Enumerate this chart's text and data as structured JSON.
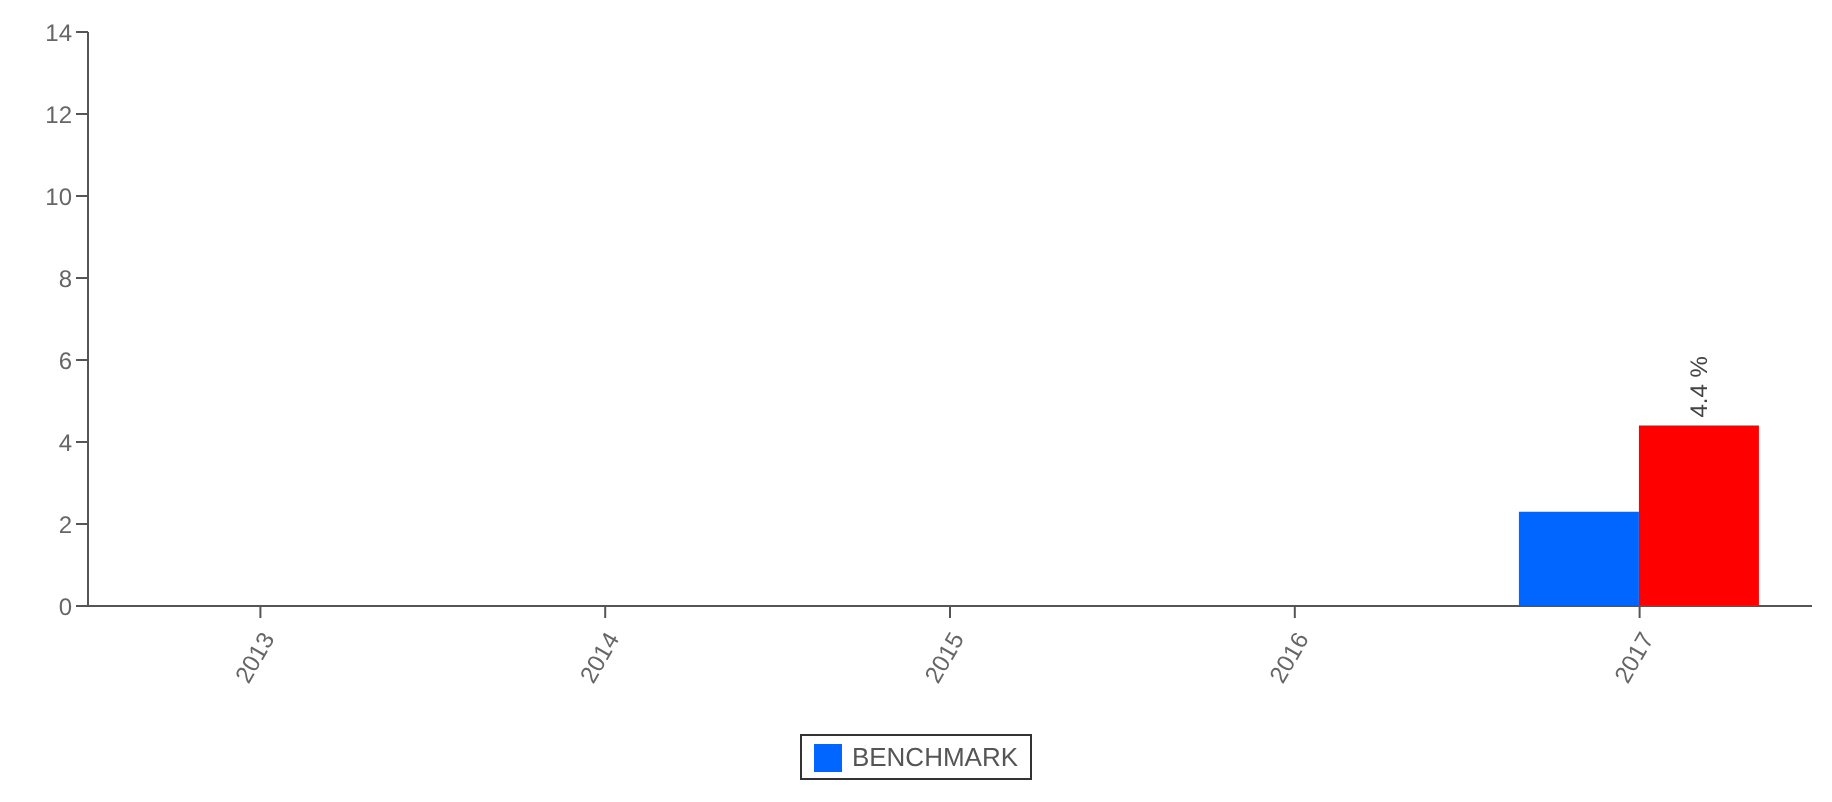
{
  "chart_data": {
    "type": "bar",
    "categories": [
      "2013",
      "2014",
      "2015",
      "2016",
      "2017"
    ],
    "series": [
      {
        "name": "BENCHMARK",
        "color": "#0066ff",
        "values": [
          null,
          null,
          null,
          null,
          2.3
        ]
      },
      {
        "color": "#ff0000",
        "values": [
          null,
          null,
          null,
          null,
          4.4
        ],
        "value_labels": [
          null,
          null,
          null,
          null,
          "4.4 %"
        ]
      }
    ],
    "ylim": [
      0,
      14
    ],
    "yticks": [
      0,
      2,
      4,
      6,
      8,
      10,
      12,
      14
    ],
    "legend": "bottom"
  }
}
